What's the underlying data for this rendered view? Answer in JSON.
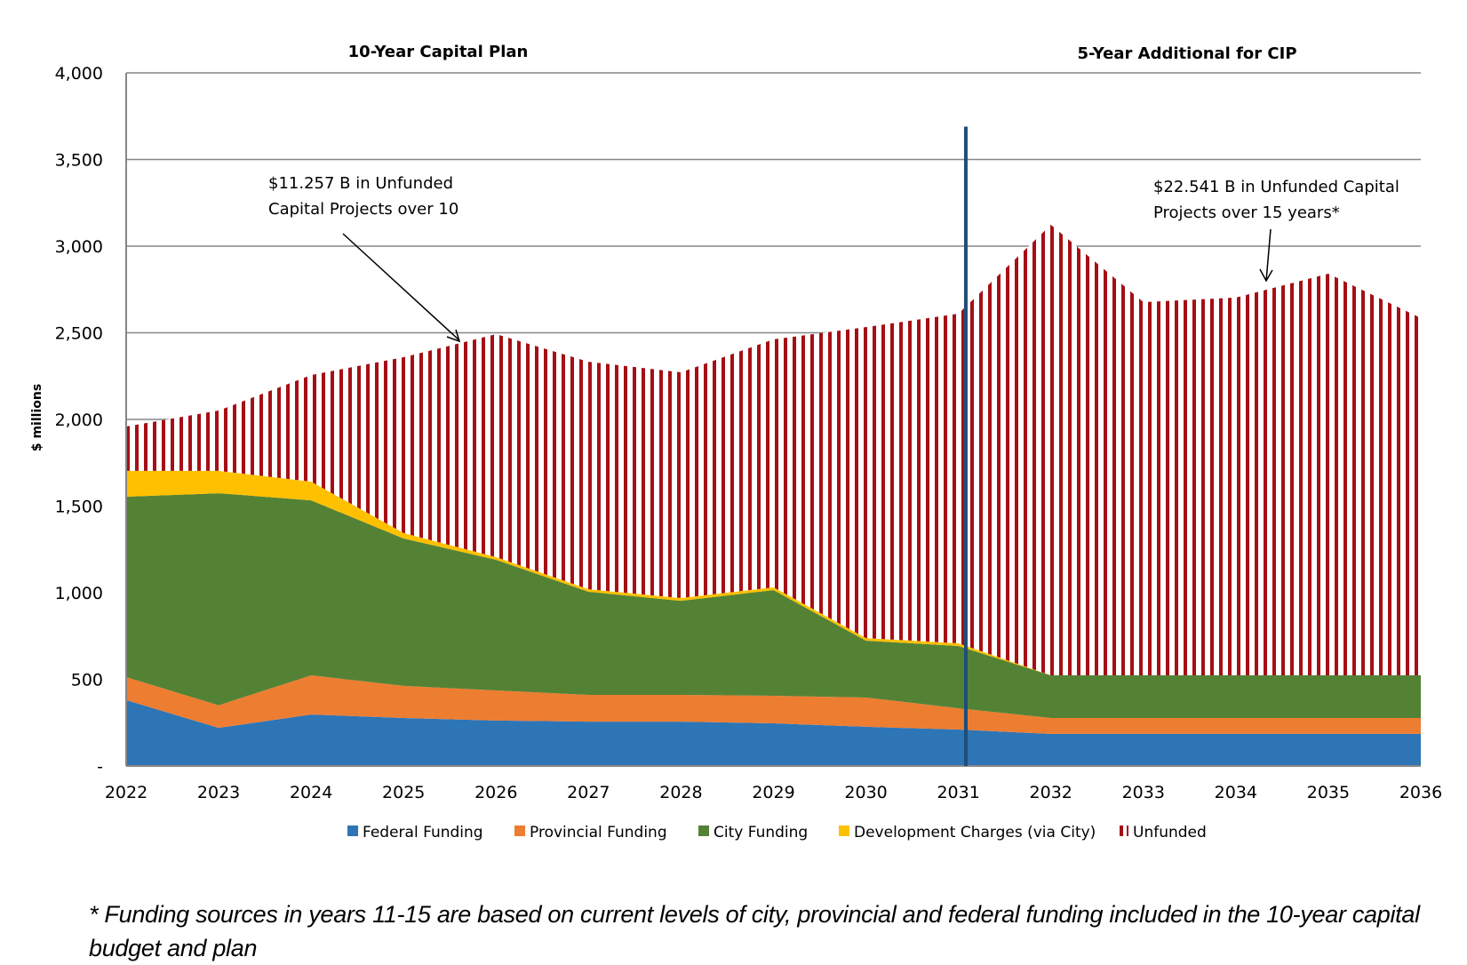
{
  "chart_data": {
    "type": "area",
    "stacked": true,
    "x": [
      2022,
      2023,
      2024,
      2025,
      2026,
      2027,
      2028,
      2029,
      2030,
      2031,
      2032,
      2033,
      2034,
      2035,
      2036
    ],
    "x_tick_labels": [
      "2022",
      "2023",
      "2024",
      "2025",
      "2026",
      "2027",
      "2028",
      "2029",
      "2030",
      "2031",
      "2032",
      "2033",
      "2034",
      "2035",
      "2036"
    ],
    "ylabel": "$ millions",
    "xlabel": "",
    "ylim": [
      0,
      4000
    ],
    "y_ticks": [
      0,
      500,
      1000,
      1500,
      2000,
      2500,
      3000,
      3500,
      4000
    ],
    "y_tick_labels": [
      "-",
      "500",
      "1,000",
      "1,500",
      "2,000",
      "2,500",
      "3,000",
      "3,500",
      "4,000"
    ],
    "grid": true,
    "legend_position": "bottom",
    "series": [
      {
        "name": "Federal Funding",
        "color": "#2E75B6",
        "pattern": "solid",
        "values": [
          380,
          220,
          297,
          277,
          262,
          256,
          256,
          246,
          226,
          210,
          185,
          185,
          185,
          185,
          185
        ]
      },
      {
        "name": "Provincial Funding",
        "color": "#ED7D31",
        "pattern": "solid",
        "values": [
          133,
          130,
          226,
          185,
          174,
          154,
          154,
          159,
          169,
          123,
          92,
          92,
          92,
          92,
          92
        ]
      },
      {
        "name": "City Funding",
        "color": "#548235",
        "pattern": "solid",
        "values": [
          1041,
          1224,
          1010,
          851,
          754,
          595,
          543,
          610,
          328,
          359,
          246,
          246,
          246,
          246,
          246
        ]
      },
      {
        "name": "Development Charges (via City)",
        "color": "#FFC000",
        "pattern": "solid",
        "values": [
          149,
          129,
          108,
          31,
          15,
          15,
          16,
          16,
          15,
          16,
          0,
          0,
          0,
          0,
          0
        ]
      },
      {
        "name": "Unfunded",
        "color": "#A50F15",
        "pattern": "vertical-stripes",
        "values": [
          256,
          348,
          615,
          1015,
          1287,
          1313,
          1303,
          1431,
          1795,
          1902,
          2600,
          2154,
          2180,
          2318,
          2062
        ]
      }
    ],
    "section_titles": [
      {
        "text": "10-Year Capital Plan"
      },
      {
        "text": "5-Year Additional for CIP"
      }
    ],
    "divider": {
      "x": 2031.08,
      "top_value": 3690,
      "color": "#1F4E79"
    },
    "annotations": [
      {
        "lines": [
          "$11.257 B in Unfunded",
          "Capital Projects over 10"
        ],
        "arrow_to": {
          "x": 2025.6,
          "y": 2440
        }
      },
      {
        "lines": [
          "$22.541 B in Unfunded  Capital",
          "Projects over 15 years*"
        ],
        "arrow_to": {
          "x": 2034.45,
          "y": 2780
        }
      }
    ],
    "footnote": "* Funding sources in years 11-15 are based on current levels of city, provincial and federal funding included in the 10-year capital budget and plan"
  }
}
